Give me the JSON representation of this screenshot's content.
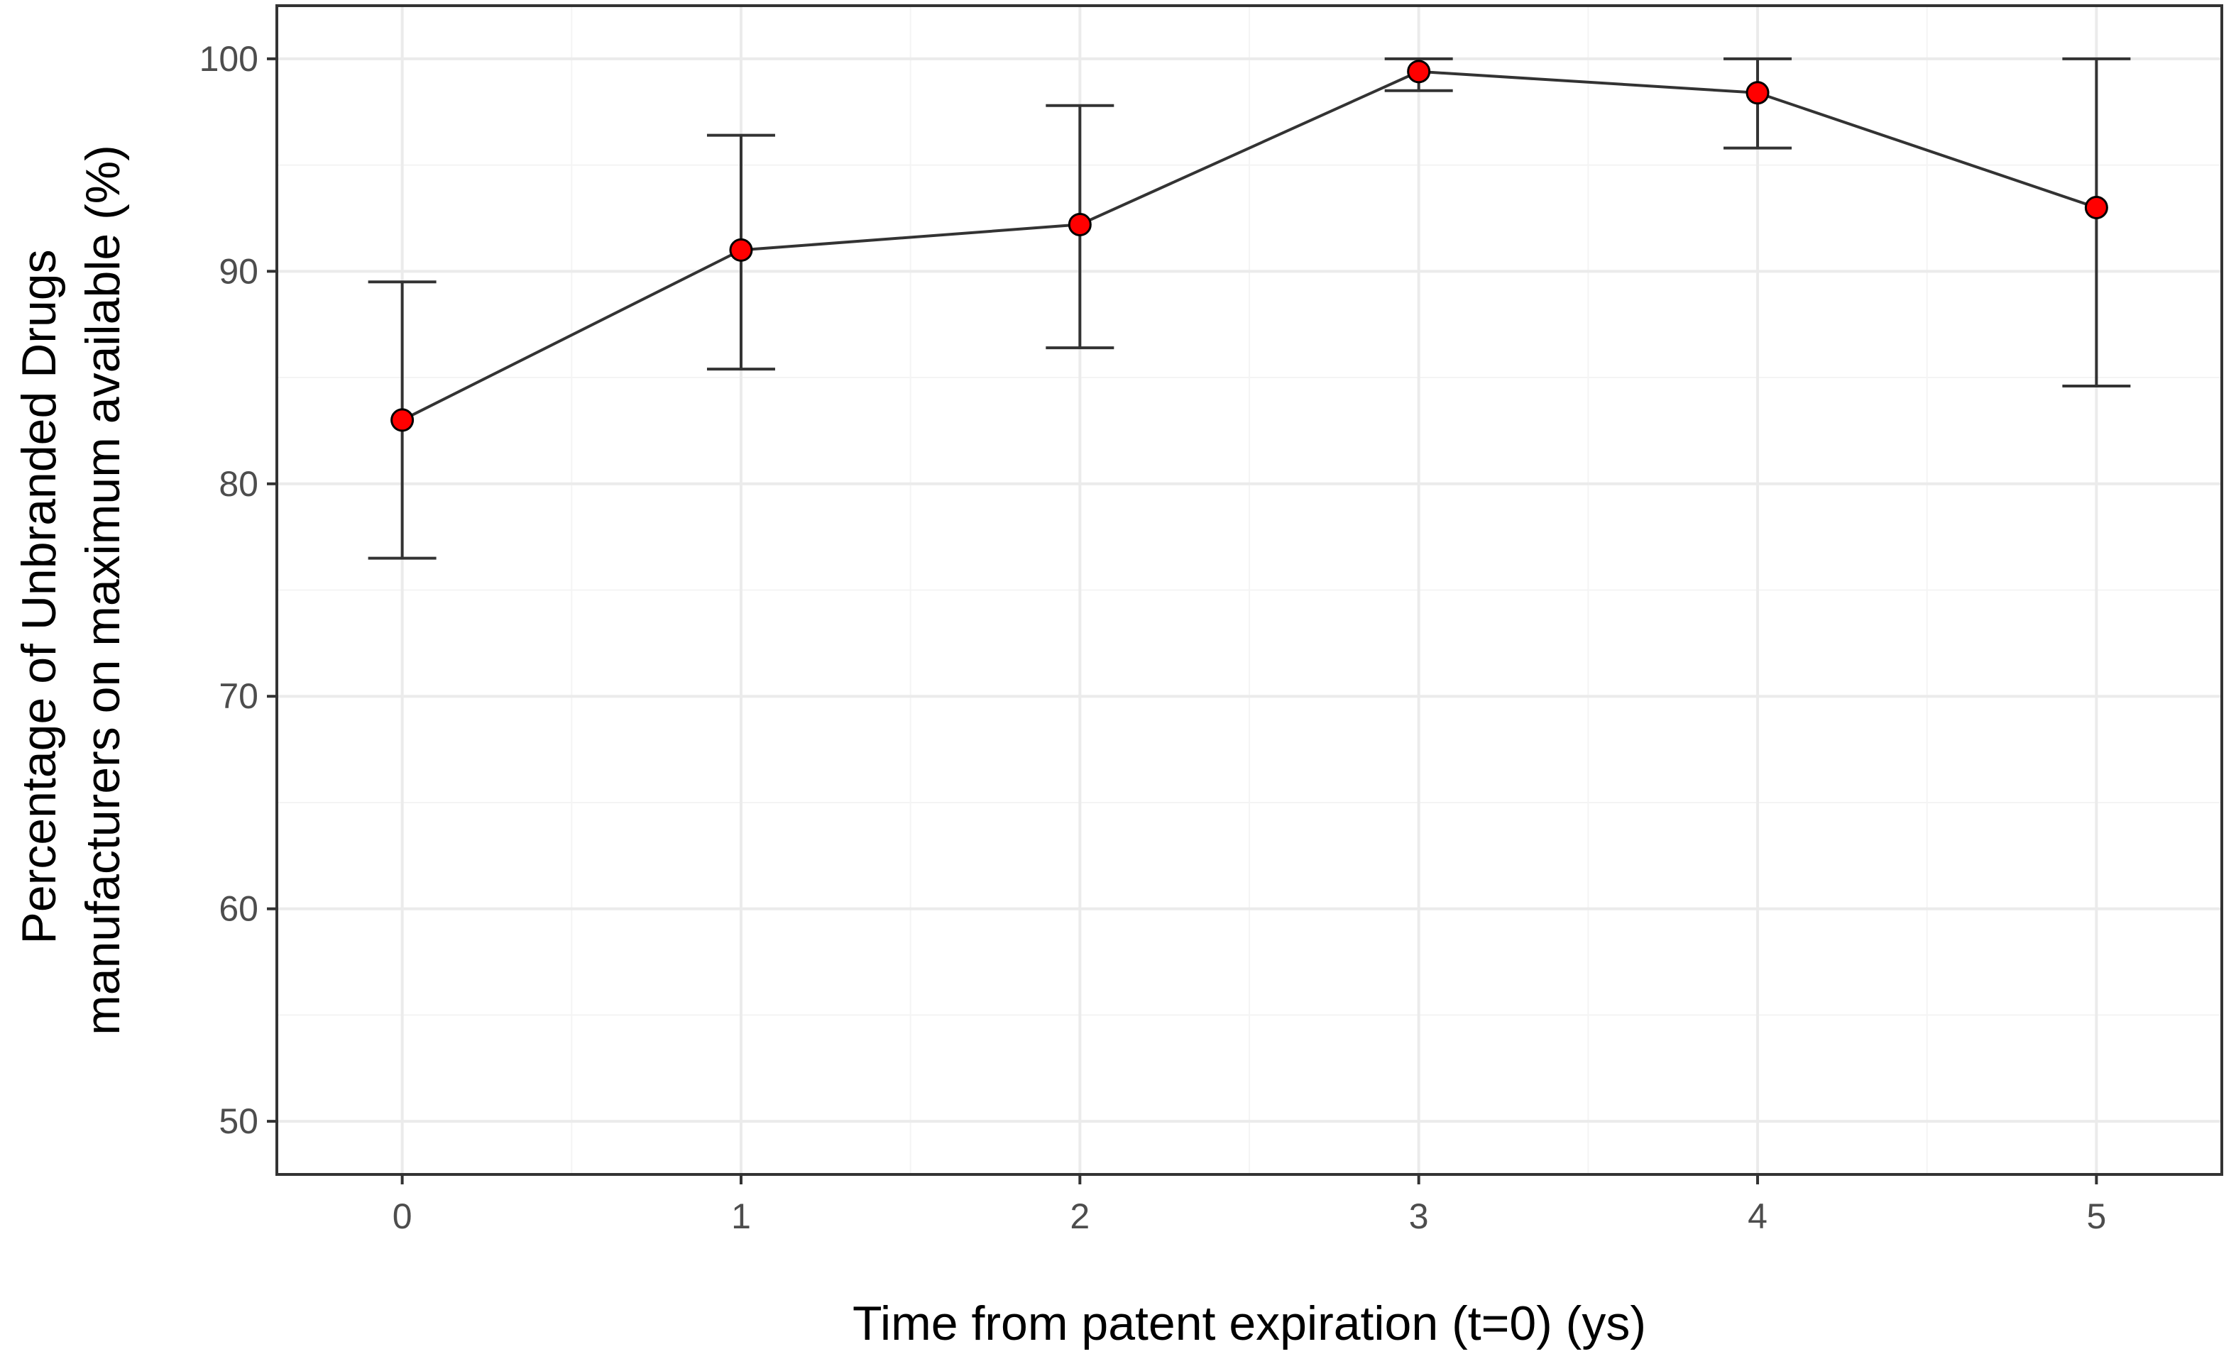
{
  "chart_data": {
    "type": "line",
    "xlabel": "Time from patent expiration (t=0) (ys)",
    "ylabel_lines": [
      "Percentage of Unbranded Drugs",
      "manufacturers on maximum available (%)"
    ],
    "x": [
      0,
      1,
      2,
      3,
      4,
      5
    ],
    "x_ticks": [
      "0",
      "1",
      "2",
      "3",
      "4",
      "5"
    ],
    "y_ticks": [
      "50",
      "60",
      "70",
      "80",
      "90",
      "100"
    ],
    "xlim": [
      -0.37,
      5.37
    ],
    "ylim": [
      47.5,
      102.5
    ],
    "grid": true,
    "series": [
      {
        "values": [
          83.0,
          91.0,
          92.2,
          99.4,
          98.4,
          93.0
        ],
        "lower": [
          76.5,
          85.4,
          86.4,
          98.5,
          95.8,
          84.6
        ],
        "upper": [
          89.5,
          96.4,
          97.8,
          100.0,
          100.0,
          100.0
        ]
      }
    ],
    "colors": {
      "point_fill": "#ff0000",
      "point_stroke": "#000000",
      "line": "#333333",
      "grid_major": "#ebebeb",
      "grid_minor": "#f4f4f4",
      "panel_border": "#333333"
    }
  }
}
